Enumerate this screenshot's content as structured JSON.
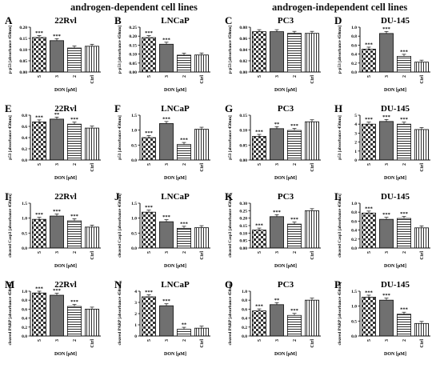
{
  "headings": {
    "dependent": "androgen-dependent cell lines",
    "independent": "androgen-independent cell lines"
  },
  "colors": {
    "bar_fill": "#707070",
    "axis": "#111111",
    "pattern": "#333333"
  },
  "fills": [
    "checker",
    "solid",
    "hstripe",
    "vstripe"
  ],
  "chart_data": [
    {
      "type": "bar",
      "panel": "A",
      "title": "22Rvl",
      "ylabel": "p-p53 [absorbance 450nm]",
      "xlabel": "DON [µM]",
      "categories": [
        "5",
        "3",
        "2",
        "Ctrl"
      ],
      "values": [
        0.154,
        0.14,
        0.107,
        0.115
      ],
      "ylim": [
        0,
        0.2
      ],
      "yticks": [
        "0.00",
        "0.05",
        "0.10",
        "0.15",
        "0.20"
      ],
      "significance": [
        "***",
        "***",
        "",
        ""
      ]
    },
    {
      "type": "bar",
      "panel": "B",
      "title": "LNCaP",
      "ylabel": "p-p53 [absorbance 450nm]",
      "xlabel": "DON [µM]",
      "categories": [
        "5",
        "3",
        "2",
        "Ctrl"
      ],
      "values": [
        0.192,
        0.155,
        0.094,
        0.095
      ],
      "ylim": [
        0,
        0.25
      ],
      "yticks": [
        "0.00",
        "0.05",
        "0.10",
        "0.15",
        "0.20",
        "0.25"
      ],
      "significance": [
        "***",
        "***",
        "",
        ""
      ]
    },
    {
      "type": "bar",
      "panel": "C",
      "title": "PC3",
      "ylabel": "p-p53 [absorbance 450nm]",
      "xlabel": "DON [µM]",
      "categories": [
        "5",
        "3",
        "2",
        "Ctrl"
      ],
      "values": [
        0.072,
        0.072,
        0.069,
        0.069
      ],
      "ylim": [
        0,
        0.08
      ],
      "yticks": [
        "0.00",
        "0.02",
        "0.04",
        "0.06",
        "0.08"
      ],
      "significance": [
        "",
        "",
        "",
        ""
      ]
    },
    {
      "type": "bar",
      "panel": "D",
      "title": "DU-145",
      "ylabel": "p-p53 [absorbance 450nm]",
      "xlabel": "DON [µM]",
      "categories": [
        "5",
        "3",
        "2",
        "Ctrl"
      ],
      "values": [
        0.51,
        0.86,
        0.35,
        0.22
      ],
      "ylim": [
        0,
        1.0
      ],
      "yticks": [
        "0.0",
        "0.2",
        "0.4",
        "0.6",
        "0.8",
        "1.0"
      ],
      "significance": [
        "***",
        "***",
        "***",
        ""
      ]
    },
    {
      "type": "bar",
      "panel": "E",
      "title": "22Rvl",
      "ylabel": "p53 [absorbance 450nm]",
      "xlabel": "DON [µM]",
      "categories": [
        "5",
        "3",
        "2",
        "Ctrl"
      ],
      "values": [
        0.68,
        0.73,
        0.64,
        0.57
      ],
      "ylim": [
        0,
        0.8
      ],
      "yticks": [
        "0.0",
        "0.2",
        "0.4",
        "0.6",
        "0.8"
      ],
      "significance": [
        "***",
        "**",
        "***",
        ""
      ]
    },
    {
      "type": "bar",
      "panel": "F",
      "title": "LNCaP",
      "ylabel": "p53 [absorbance 450nm]",
      "xlabel": "DON [µM]",
      "categories": [
        "5",
        "3",
        "2",
        "Ctrl"
      ],
      "values": [
        0.75,
        1.22,
        0.52,
        1.03
      ],
      "ylim": [
        0,
        1.5
      ],
      "yticks": [
        "0.0",
        "0.5",
        "1.0",
        "1.5"
      ],
      "significance": [
        "***",
        "***",
        "***",
        ""
      ]
    },
    {
      "type": "bar",
      "panel": "G",
      "title": "PC3",
      "ylabel": "p53 [absorbance 450nm]",
      "xlabel": "DON [µM]",
      "categories": [
        "5",
        "3",
        "2",
        "Ctrl"
      ],
      "values": [
        0.079,
        0.105,
        0.099,
        0.128
      ],
      "ylim": [
        0,
        0.15
      ],
      "yticks": [
        "0.00",
        "0.05",
        "0.10",
        "0.15"
      ],
      "significance": [
        "***",
        "**",
        "***",
        ""
      ]
    },
    {
      "type": "bar",
      "panel": "H",
      "title": "DU-145",
      "ylabel": "p53 [absorbance 450nm]",
      "xlabel": "DON [µM]",
      "categories": [
        "5",
        "3",
        "2",
        "Ctrl"
      ],
      "values": [
        4.0,
        4.3,
        4.0,
        3.4
      ],
      "ylim": [
        0,
        5
      ],
      "yticks": [
        "0",
        "1",
        "2",
        "3",
        "4",
        "5"
      ],
      "significance": [
        "***",
        "***",
        "***",
        ""
      ]
    },
    {
      "type": "bar",
      "panel": "I",
      "title": "22Rvl",
      "ylabel": "cleaved Casp3 [absorbance 450nm]",
      "xlabel": "DON [µM]",
      "categories": [
        "5",
        "3",
        "2",
        "Ctrl"
      ],
      "values": [
        0.96,
        1.07,
        0.91,
        0.7
      ],
      "ylim": [
        0,
        1.5
      ],
      "yticks": [
        "0.0",
        "0.5",
        "1.0",
        "1.5"
      ],
      "significance": [
        "***",
        "***",
        "***",
        ""
      ]
    },
    {
      "type": "bar",
      "panel": "J",
      "title": "LNCaP",
      "ylabel": "cleaved Casp3 [absorbance 450nm]",
      "xlabel": "DON [µM]",
      "categories": [
        "5",
        "3",
        "2",
        "Ctrl"
      ],
      "values": [
        1.2,
        0.88,
        0.66,
        0.68
      ],
      "ylim": [
        0,
        1.5
      ],
      "yticks": [
        "0.0",
        "0.5",
        "1.0",
        "1.5"
      ],
      "significance": [
        "***",
        "***",
        "***",
        ""
      ]
    },
    {
      "type": "bar",
      "panel": "K",
      "title": "PC3",
      "ylabel": "cleaved Casp3 [absorbance 450nm]",
      "xlabel": "DON [µM]",
      "categories": [
        "5",
        "3",
        "2",
        "Ctrl"
      ],
      "values": [
        0.12,
        0.21,
        0.16,
        0.25
      ],
      "ylim": [
        0,
        0.3
      ],
      "yticks": [
        "0.00",
        "0.05",
        "0.10",
        "0.15",
        "0.20",
        "0.25",
        "0.30"
      ],
      "significance": [
        "***",
        "***",
        "***",
        ""
      ]
    },
    {
      "type": "bar",
      "panel": "L",
      "title": "DU-145",
      "ylabel": "cleaved Casp3 [absorbance 450nm]",
      "xlabel": "DON [µM]",
      "categories": [
        "5",
        "3",
        "2",
        "Ctrl"
      ],
      "values": [
        0.78,
        0.64,
        0.66,
        0.45
      ],
      "ylim": [
        0,
        1.0
      ],
      "yticks": [
        "0.0",
        "0.2",
        "0.4",
        "0.6",
        "0.8",
        "1.0"
      ],
      "significance": [
        "***",
        "***",
        "***",
        ""
      ]
    },
    {
      "type": "bar",
      "panel": "M",
      "title": "22Rvl",
      "ylabel": "cleaved PARP [absorbance 450nm]",
      "xlabel": "DON [µM]",
      "categories": [
        "5",
        "3",
        "2",
        "Ctrl"
      ],
      "values": [
        0.96,
        0.91,
        0.66,
        0.6
      ],
      "ylim": [
        0,
        1.0
      ],
      "yticks": [
        "0.0",
        "0.2",
        "0.4",
        "0.6",
        "0.8",
        "1.0"
      ],
      "significance": [
        "***",
        "***",
        "***",
        ""
      ]
    },
    {
      "type": "bar",
      "panel": "N",
      "title": "LNCaP",
      "ylabel": "cleaved PARP [absorbance 450nm]",
      "xlabel": "DON [µM]",
      "categories": [
        "5",
        "3",
        "2",
        "Ctrl"
      ],
      "values": [
        3.5,
        2.7,
        0.6,
        0.7
      ],
      "ylim": [
        0,
        4
      ],
      "yticks": [
        "0",
        "1",
        "2",
        "3",
        "4"
      ],
      "significance": [
        "***",
        "***",
        "**",
        ""
      ]
    },
    {
      "type": "bar",
      "panel": "O",
      "title": "PC3",
      "ylabel": "cleaved PARP [absorbance 450nm]",
      "xlabel": "DON [µM]",
      "categories": [
        "5",
        "3",
        "2",
        "Ctrl"
      ],
      "values": [
        0.56,
        0.7,
        0.46,
        0.8
      ],
      "ylim": [
        0,
        1.0
      ],
      "yticks": [
        "0.0",
        "0.2",
        "0.4",
        "0.6",
        "0.8",
        "1.0"
      ],
      "significance": [
        "***",
        "**",
        "***",
        ""
      ]
    },
    {
      "type": "bar",
      "panel": "P",
      "title": "DU-145",
      "ylabel": "cleaved PARP [absorbance 450nm]",
      "xlabel": "DON [µM]",
      "categories": [
        "5",
        "3",
        "2",
        "Ctrl"
      ],
      "values": [
        1.3,
        1.2,
        0.73,
        0.42
      ],
      "ylim": [
        0,
        1.5
      ],
      "yticks": [
        "0.0",
        "0.5",
        "1.0",
        "1.5"
      ],
      "significance": [
        "***",
        "***",
        "***",
        ""
      ]
    }
  ]
}
